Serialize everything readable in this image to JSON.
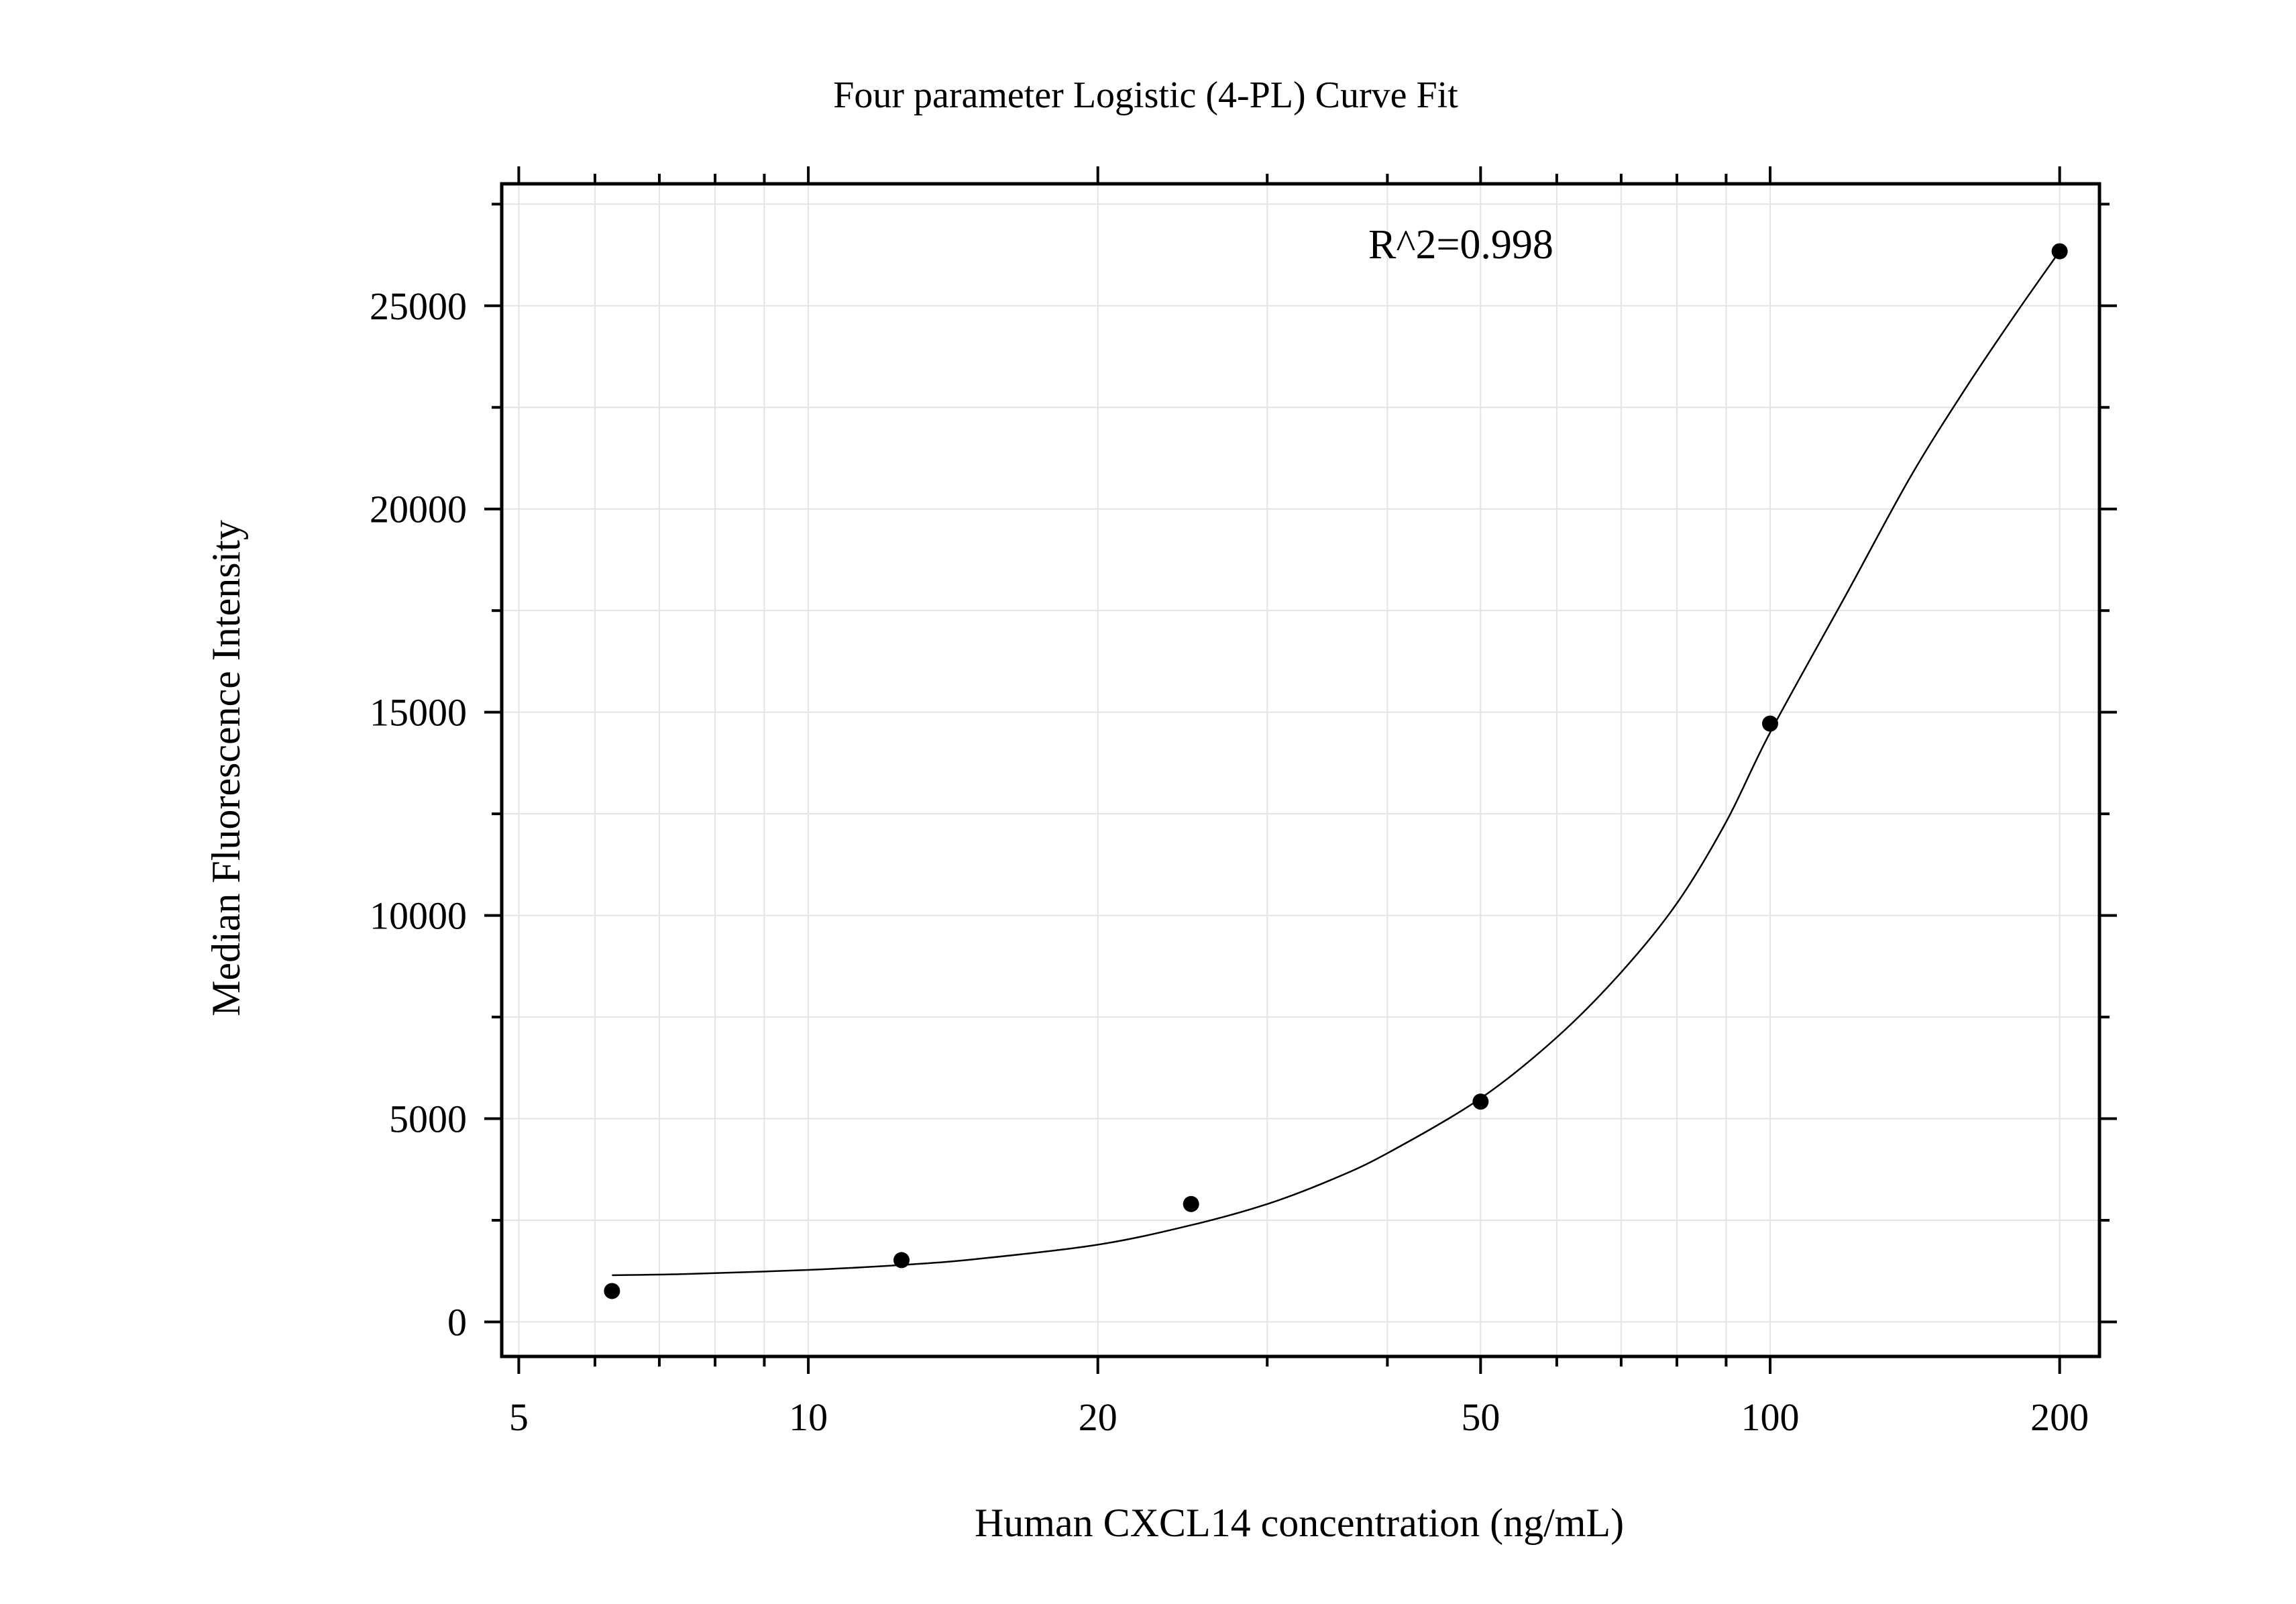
{
  "chart_data": {
    "type": "scatter",
    "title": "Four parameter Logistic (4-PL) Curve Fit",
    "xlabel": "Human CXCL14 concentration (ng/mL)",
    "ylabel": "Median Fluorescence Intensity",
    "annotation": "R^2=0.998",
    "x_scale": "log",
    "xlim": [
      4.8,
      220
    ],
    "ylim": [
      -850,
      28000
    ],
    "x_ticks": [
      5,
      10,
      20,
      50,
      100,
      200
    ],
    "x_tick_labels": [
      "5",
      "10",
      "20",
      "50",
      "100",
      "200"
    ],
    "y_ticks": [
      0,
      5000,
      10000,
      15000,
      20000,
      25000
    ],
    "y_tick_labels": [
      "0",
      "5000",
      "10000",
      "15000",
      "20000",
      "25000"
    ],
    "grid": true,
    "series": [
      {
        "points": [
          {
            "x": 6.25,
            "y": 760
          },
          {
            "x": 12.5,
            "y": 1520
          },
          {
            "x": 25,
            "y": 2900
          },
          {
            "x": 50,
            "y": 5420
          },
          {
            "x": 100,
            "y": 14720
          },
          {
            "x": 200,
            "y": 26340
          }
        ]
      }
    ],
    "fit_curve": [
      {
        "x": 6.25,
        "y": 1150
      },
      {
        "x": 7.5,
        "y": 1180
      },
      {
        "x": 10,
        "y": 1280
      },
      {
        "x": 12.5,
        "y": 1400
      },
      {
        "x": 15,
        "y": 1550
      },
      {
        "x": 20,
        "y": 1900
      },
      {
        "x": 25,
        "y": 2380
      },
      {
        "x": 30,
        "y": 2900
      },
      {
        "x": 35,
        "y": 3500
      },
      {
        "x": 40,
        "y": 4150
      },
      {
        "x": 50,
        "y": 5500
      },
      {
        "x": 60,
        "y": 7000
      },
      {
        "x": 70,
        "y": 8600
      },
      {
        "x": 80,
        "y": 10300
      },
      {
        "x": 90,
        "y": 12300
      },
      {
        "x": 100,
        "y": 14500
      },
      {
        "x": 120,
        "y": 17900
      },
      {
        "x": 140,
        "y": 20800
      },
      {
        "x": 160,
        "y": 23000
      },
      {
        "x": 180,
        "y": 24800
      },
      {
        "x": 200,
        "y": 26340
      }
    ],
    "colors": {
      "axis": "#000000",
      "grid": "#e3e3e3",
      "points": "#000000",
      "curve": "#000000"
    }
  }
}
